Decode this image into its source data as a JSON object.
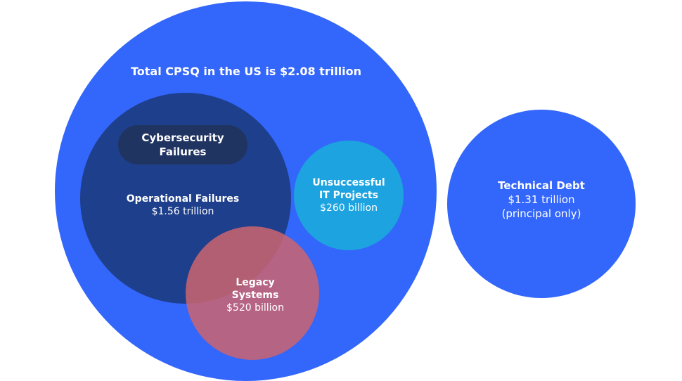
{
  "diagram": {
    "title": "Total CPSQ in the US is $2.08 trillion",
    "cybersecurity": {
      "line1": "Cybersecurity",
      "line2": "Failures"
    },
    "operational": {
      "name": "Operational Failures",
      "value": "$1.56 trillion"
    },
    "it_projects": {
      "line1": "Unsuccessful",
      "line2": "IT Projects",
      "value": "$260 billion"
    },
    "legacy": {
      "line1": "Legacy",
      "line2": "Systems",
      "value": "$520 billion"
    },
    "technical_debt": {
      "name": "Technical Debt",
      "value": "$1.31 trillion",
      "note": "(principal only)"
    }
  },
  "colors": {
    "total_cpsq": "#3366fa",
    "operational_failures": "#1e3f8c",
    "cybersecurity_failures": "#203462",
    "it_projects": "#1da3e0",
    "legacy_systems": "#cd646e",
    "technical_debt": "#3366fa"
  }
}
